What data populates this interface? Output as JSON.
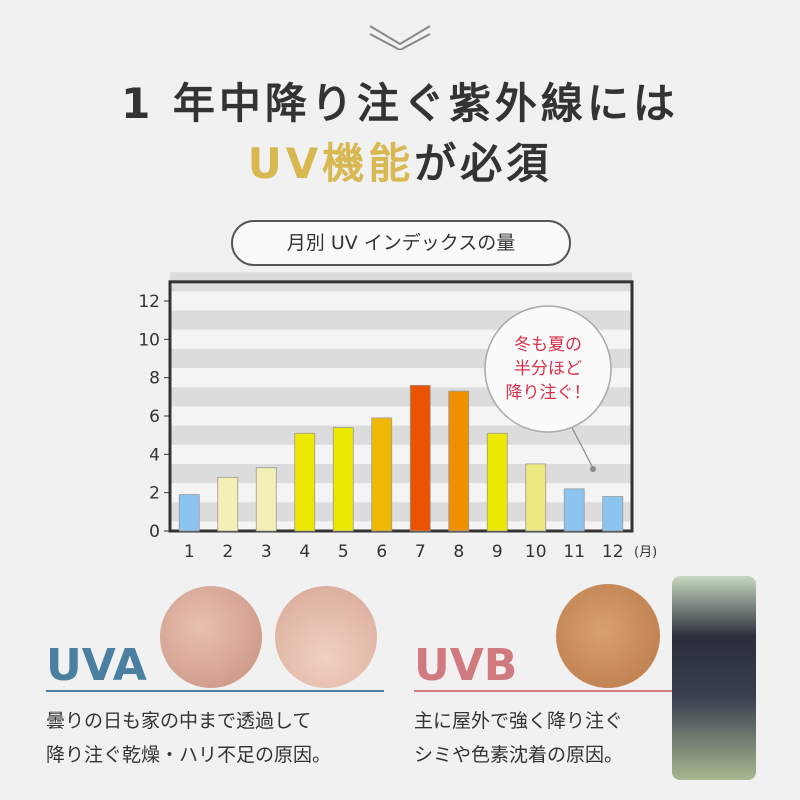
{
  "header": {
    "line1": "1 年中降り注ぐ紫外線には",
    "line2_accent": "UV機能",
    "line2_rest": "が必須"
  },
  "chart_label": "月別 UV インデックスの量",
  "chart_data": {
    "type": "bar",
    "title": "",
    "xlabel": "",
    "ylabel": "",
    "x_unit": "(月)",
    "categories": [
      "1",
      "2",
      "3",
      "4",
      "5",
      "6",
      "7",
      "8",
      "9",
      "10",
      "11",
      "12"
    ],
    "values": [
      1.9,
      2.8,
      3.3,
      5.1,
      5.4,
      5.9,
      7.6,
      7.3,
      5.1,
      3.5,
      2.2,
      1.8
    ],
    "colors": [
      "#8cc4f0",
      "#f2f0b4",
      "#f2f0b4",
      "#ece800",
      "#ece800",
      "#f0b800",
      "#e85400",
      "#f09000",
      "#ece800",
      "#ece880",
      "#8cc4f0",
      "#8cc4f0"
    ],
    "yticks": [
      "0",
      "2",
      "4",
      "6",
      "8",
      "10",
      "12"
    ],
    "ylim": [
      0,
      13
    ],
    "grid": "horizontal stripes",
    "annotation": [
      "冬も夏の",
      "半分ほど",
      "降り注ぐ！"
    ]
  },
  "uva": {
    "title": "UVA",
    "color": "#4a7fa0",
    "desc": [
      "曇りの日も家の中まで透過して",
      "降り注ぐ乾燥・ハリ不足の原因。"
    ]
  },
  "uvb": {
    "title": "UVB",
    "color": "#d07a80",
    "desc": [
      "主に屋外で強く降り注ぐ",
      "シミや色素沈着の原因。"
    ]
  }
}
